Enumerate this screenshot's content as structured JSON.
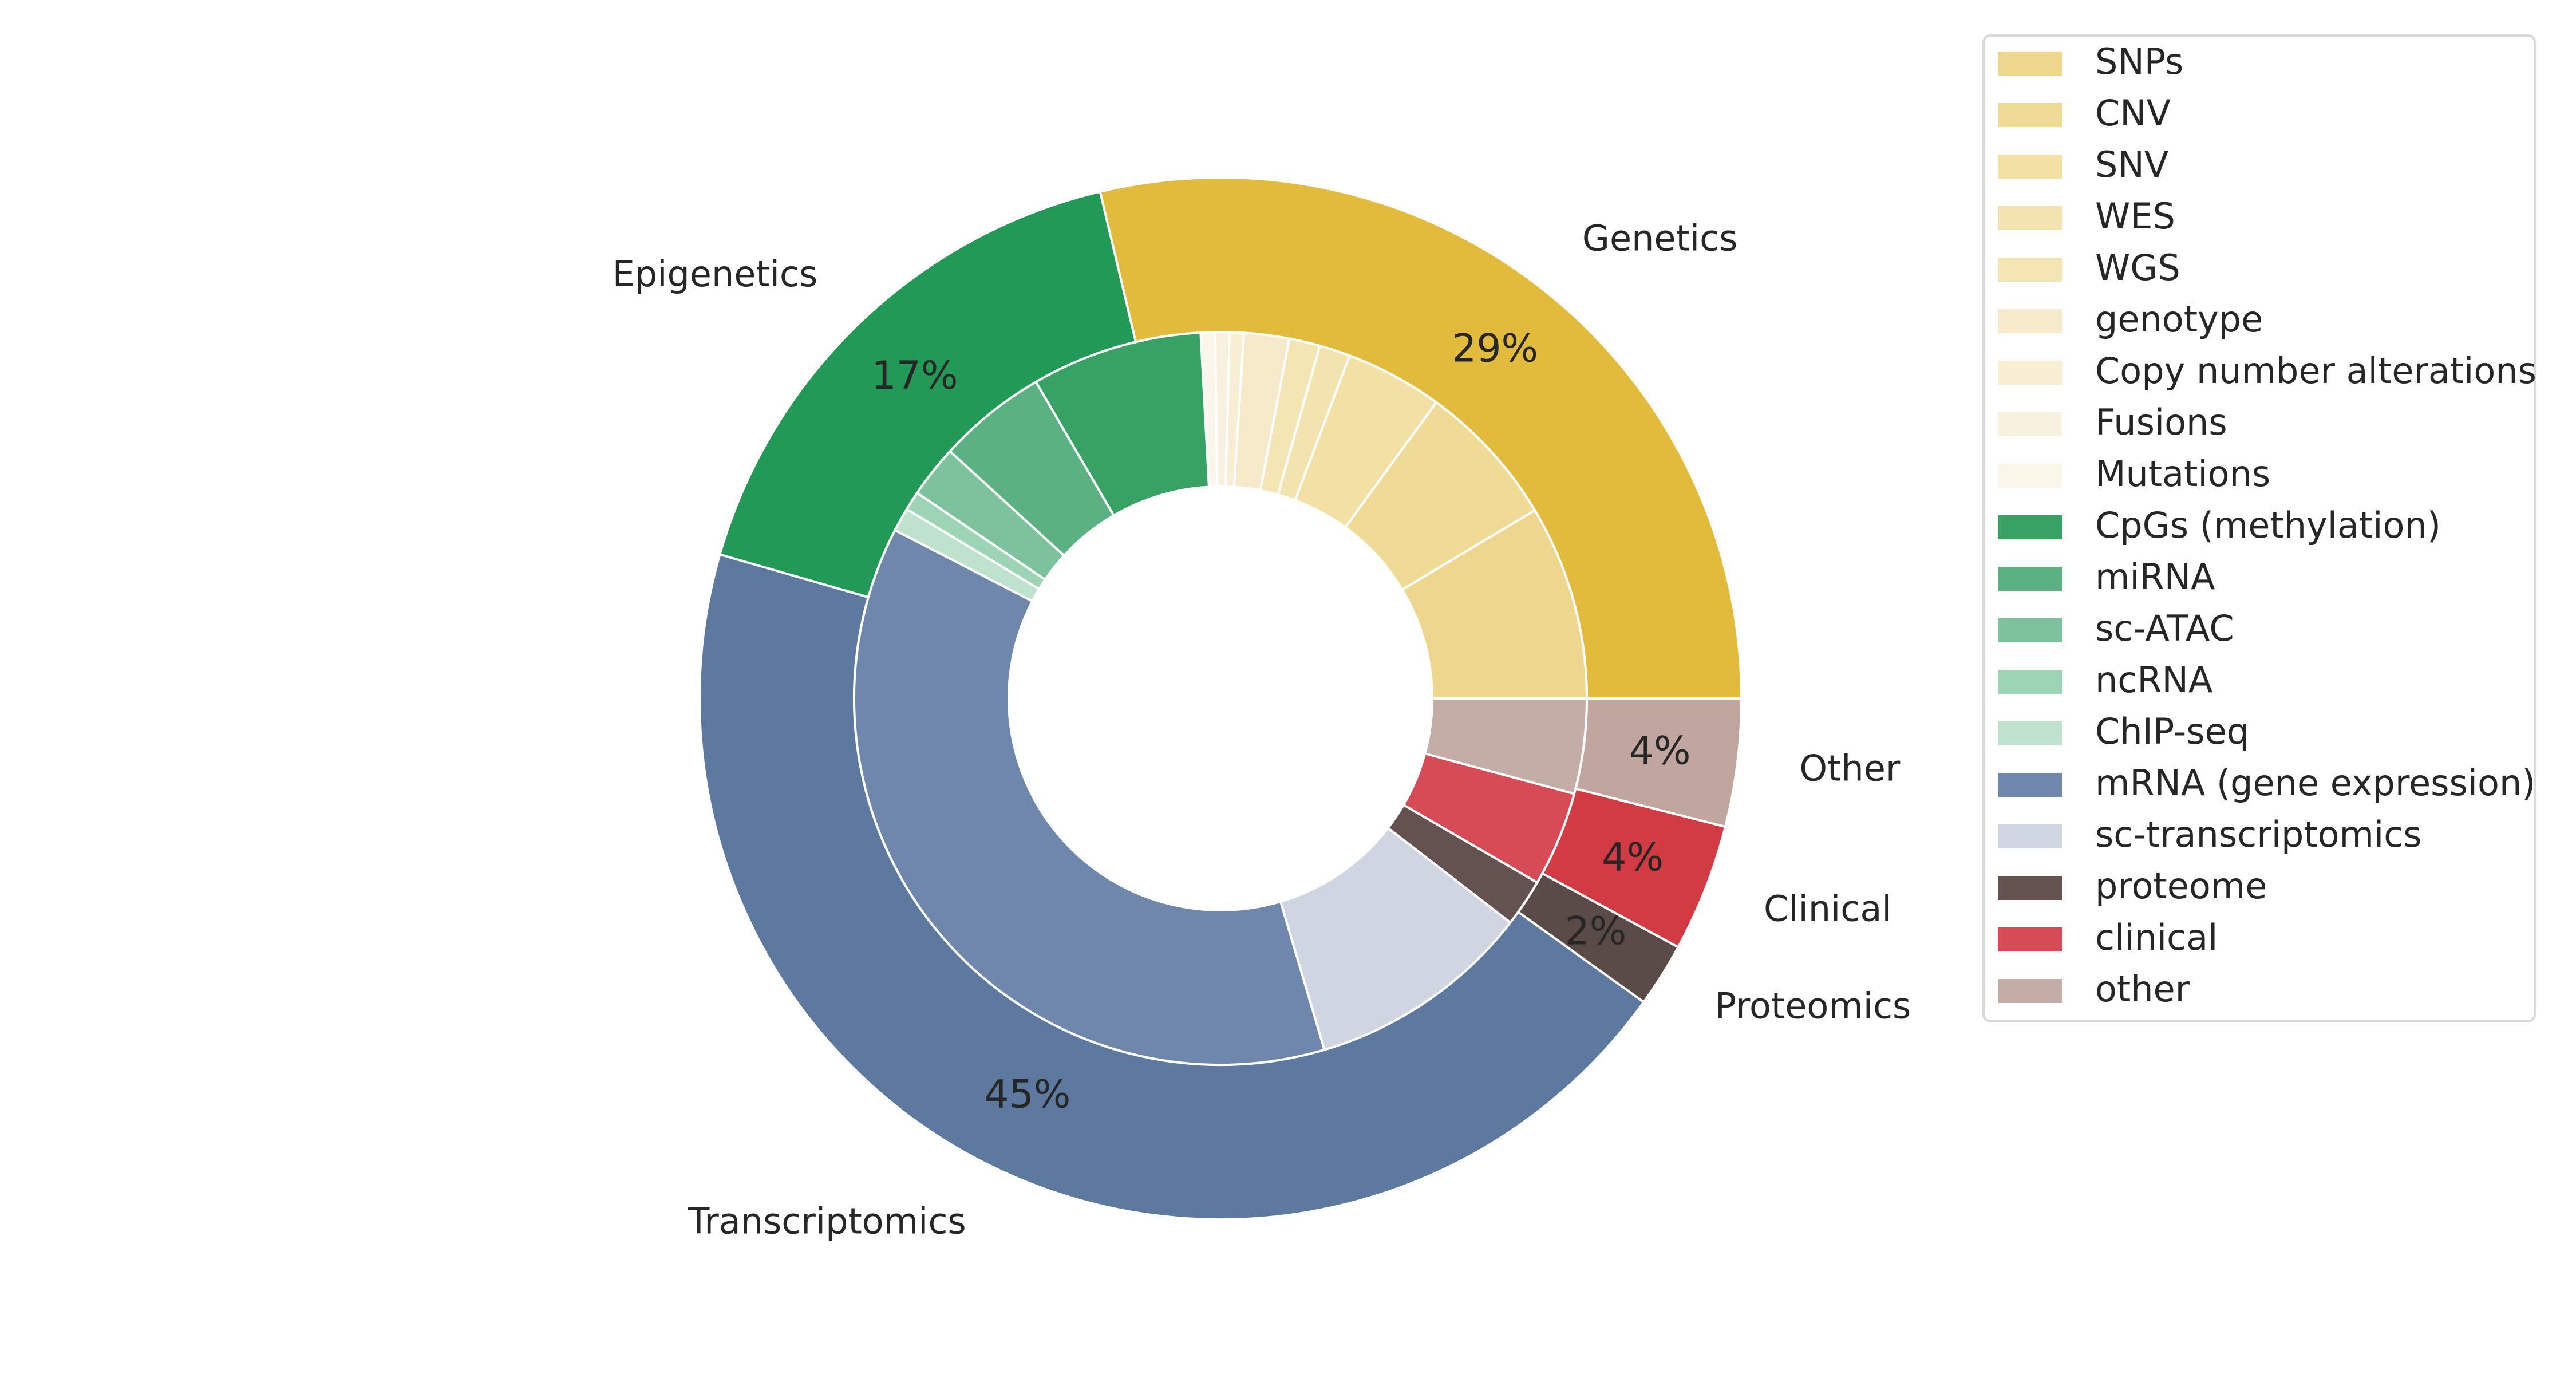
{
  "chart_data": {
    "type": "pie",
    "variant": "nested-donut",
    "title": "",
    "outer_ring": [
      {
        "label": "Genetics",
        "value": 29,
        "pct_label": "29%",
        "color": "#e2bb3d"
      },
      {
        "label": "Epigenetics",
        "value": 17,
        "pct_label": "17%",
        "color": "#229a55"
      },
      {
        "label": "Transcriptomics",
        "value": 45,
        "pct_label": "45%",
        "color": "#5d799f"
      },
      {
        "label": "Proteomics",
        "value": 2,
        "pct_label": "2%",
        "color": "#5a4b47"
      },
      {
        "label": "Clinical",
        "value": 4,
        "pct_label": "4%",
        "color": "#d23a44"
      },
      {
        "label": "Other",
        "value": 4,
        "pct_label": "4%",
        "color": "#c0a69e"
      }
    ],
    "inner_ring": [
      {
        "label": "SNPs",
        "value": 8.2,
        "color": "#efd68f"
      },
      {
        "label": "CNV",
        "value": 6.1,
        "color": "#efda96"
      },
      {
        "label": "SNV",
        "value": 4.1,
        "color": "#f2e0a5"
      },
      {
        "label": "WES",
        "value": 1.3,
        "color": "#f3e3ae"
      },
      {
        "label": "WGS",
        "value": 1.3,
        "color": "#f4e5b5"
      },
      {
        "label": "genotype",
        "value": 1.9,
        "color": "#f6eaca"
      },
      {
        "label": "Copy number alterations",
        "value": 0.6,
        "color": "#f7eed3"
      },
      {
        "label": "Fusions",
        "value": 0.6,
        "color": "#f9f1e0"
      },
      {
        "label": "Mutations",
        "value": 0.6,
        "color": "#fbf6ea"
      },
      {
        "label": "CpGs (methylation)",
        "value": 7.2,
        "color": "#38a265"
      },
      {
        "label": "miRNA",
        "value": 4.6,
        "color": "#5cb182"
      },
      {
        "label": "sc-ATAC",
        "value": 2.2,
        "color": "#7cc29c"
      },
      {
        "label": "ncRNA",
        "value": 0.8,
        "color": "#9ed4b6"
      },
      {
        "label": "ChIP-seq",
        "value": 1.0,
        "color": "#bee2cd"
      },
      {
        "label": "mRNA (gene expression)",
        "value": 35.5,
        "color": "#6e87aa"
      },
      {
        "label": "sc-transcriptomics",
        "value": 9.5,
        "color": "#cfd6e1"
      },
      {
        "label": "proteome",
        "value": 2.0,
        "color": "#63524d"
      },
      {
        "label": "clinical",
        "value": 4.0,
        "color": "#d64b55"
      },
      {
        "label": "other",
        "value": 4.0,
        "color": "#c4ada6"
      }
    ],
    "legend_position": "upper-right",
    "start_angle_deg": 0,
    "direction": "counterclockwise"
  }
}
